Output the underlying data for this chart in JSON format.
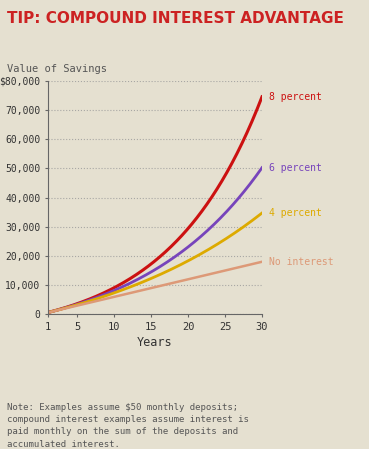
{
  "title": "TIP: COMPOUND INTEREST ADVANTAGE",
  "ylabel": "Value of Savings",
  "xlabel": "Years",
  "note": "Note: Examples assume $50 monthly deposits;\ncompound interest examples assume interest is\npaid monthly on the sum of the deposits and\naccumulated interest.",
  "background_color": "#e5e0d0",
  "plot_bg_color": "#e5e0d0",
  "title_color": "#cc2222",
  "grid_color": "#999999",
  "lines": [
    {
      "label": "8 percent",
      "rate": 0.08,
      "color": "#cc1111",
      "lw": 2.2
    },
    {
      "label": "6 percent",
      "rate": 0.06,
      "color": "#7744bb",
      "lw": 2.0
    },
    {
      "label": "4 percent",
      "rate": 0.04,
      "color": "#ddaa00",
      "lw": 2.0
    },
    {
      "label": "No interest",
      "rate": 0.0,
      "color": "#dd9977",
      "lw": 1.8
    }
  ],
  "monthly_deposit": 50,
  "ylim": [
    0,
    80000
  ],
  "xlim": [
    1,
    30
  ],
  "yticks": [
    0,
    10000,
    20000,
    30000,
    40000,
    50000,
    60000,
    70000,
    80000
  ],
  "ytick_labels": [
    "0",
    "10,000",
    "20,000",
    "30,000",
    "40,000",
    "50,000",
    "60,000",
    "70,000",
    "$80,000"
  ],
  "xticks": [
    1,
    5,
    10,
    15,
    20,
    25,
    30
  ],
  "label_offsets": {
    "8 percent": 0,
    "6 percent": 0,
    "4 percent": 0,
    "No interest": 0
  }
}
